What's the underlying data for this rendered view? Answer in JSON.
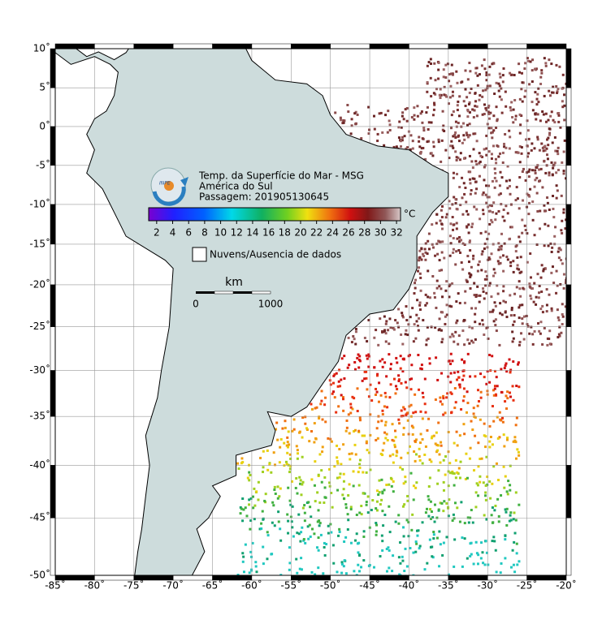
{
  "map": {
    "title": "Temp. da Superfície do Mar - MSG",
    "region": "América do Sul",
    "pass": "Passagem: 201905130645",
    "xlim": [
      -85,
      -20
    ],
    "ylim": [
      -50,
      10
    ],
    "xticks": [
      {
        "value": -85,
        "label": "-85˚"
      },
      {
        "value": -80,
        "label": "-80˚"
      },
      {
        "value": -75,
        "label": "-75˚"
      },
      {
        "value": -70,
        "label": "-70˚"
      },
      {
        "value": -65,
        "label": "-65˚"
      },
      {
        "value": -60,
        "label": "-60˚"
      },
      {
        "value": -55,
        "label": "-55˚"
      },
      {
        "value": -50,
        "label": "-50˚"
      },
      {
        "value": -45,
        "label": "-45˚"
      },
      {
        "value": -40,
        "label": "-40˚"
      },
      {
        "value": -35,
        "label": "-35˚"
      },
      {
        "value": -30,
        "label": "-30˚"
      },
      {
        "value": -25,
        "label": "-25˚"
      },
      {
        "value": -20,
        "label": "-20˚"
      }
    ],
    "yticks": [
      {
        "value": 10,
        "label": "10˚"
      },
      {
        "value": 5,
        "label": "5˚"
      },
      {
        "value": 0,
        "label": "0˚"
      },
      {
        "value": -5,
        "label": "-5˚"
      },
      {
        "value": -10,
        "label": "-10˚"
      },
      {
        "value": -15,
        "label": "-15˚"
      },
      {
        "value": -20,
        "label": "-20˚"
      },
      {
        "value": -25,
        "label": "-25˚"
      },
      {
        "value": -30,
        "label": "-30˚"
      },
      {
        "value": -35,
        "label": "-35˚"
      },
      {
        "value": -40,
        "label": "-40˚"
      },
      {
        "value": -45,
        "label": "-45˚"
      },
      {
        "value": -50,
        "label": "-50˚"
      }
    ],
    "colorbar": {
      "unit": "°C",
      "lim": [
        1,
        32.5
      ],
      "ticks": [
        2,
        4,
        6,
        8,
        10,
        12,
        14,
        16,
        18,
        20,
        22,
        24,
        26,
        28,
        30,
        32
      ]
    },
    "legend": "Nuvens/Ausencia de dados",
    "scale": {
      "unit": "km",
      "start": 0,
      "end": 1000
    }
  }
}
